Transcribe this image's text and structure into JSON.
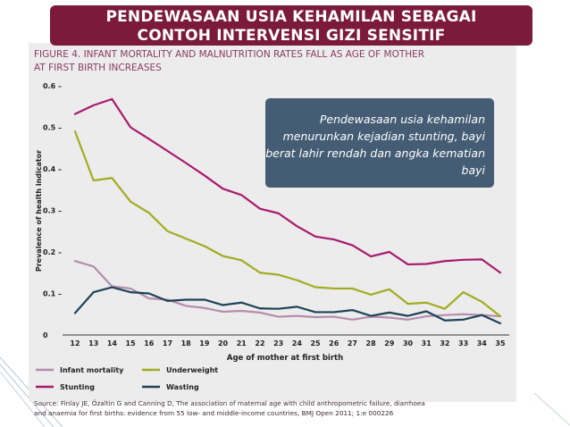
{
  "slide": {
    "title": "PENDEWASAAN USIA KEHAMILAN SEBAGAI CONTOH INTERVENSI GIZI SENSITIF",
    "callout": "Pendewasaan usia kehamilan menurunkan kejadian stunting, bayi berat lahir rendah dan angka kematian bayi"
  },
  "figure": {
    "title_line1": "FIGURE 4. INFANT MORTALITY AND MALNUTRITION RATES FALL AS AGE OF MOTHER",
    "title_line2": "AT FIRST BIRTH INCREASES",
    "source_line1": "Source:  Finlay JE, Özaltin G and Canning D, The association of maternal age with child anthropometric failure, diarrhoea",
    "source_line2": "and anaemia for first births: evidence from 55 low- and middle-income countries, BMJ Open 2011; 1:e 000226"
  },
  "colors": {
    "banner": "#7b1a3b",
    "panel": "#ececec",
    "callout": "#445c74",
    "figure_title": "#8a3b64"
  },
  "chart_data": {
    "type": "line",
    "xlabel": "Age of mother at first birth",
    "ylabel": "Prevalence of health indicator",
    "x": [
      12,
      13,
      14,
      15,
      16,
      17,
      18,
      19,
      20,
      21,
      22,
      23,
      24,
      25,
      26,
      27,
      28,
      29,
      30,
      31,
      32,
      33,
      34,
      35
    ],
    "ylim": [
      0,
      0.6
    ],
    "y_ticks": [
      0,
      0.1,
      0.2,
      0.3,
      0.4,
      0.5,
      0.6
    ],
    "y_tick_labels": [
      "0",
      "0.1 –",
      "0.2 –",
      "0.3 –",
      "0.4 –",
      "0.5 –",
      "0.6 –"
    ],
    "grid": false,
    "legend_position": "bottom",
    "series": [
      {
        "name": "Infant mortality",
        "color": "#b58cae",
        "values": [
          0.178,
          0.165,
          0.117,
          0.112,
          0.088,
          0.085,
          0.07,
          0.065,
          0.056,
          0.058,
          0.054,
          0.044,
          0.046,
          0.043,
          0.044,
          0.037,
          0.044,
          0.042,
          0.037,
          0.045,
          0.048,
          0.05,
          0.048,
          0.045
        ]
      },
      {
        "name": "Underweight",
        "color": "#a2ac1f",
        "values": [
          0.49,
          0.372,
          0.378,
          0.321,
          0.294,
          0.25,
          0.232,
          0.214,
          0.19,
          0.18,
          0.15,
          0.145,
          0.132,
          0.115,
          0.112,
          0.112,
          0.097,
          0.11,
          0.075,
          0.078,
          0.063,
          0.103,
          0.08,
          0.045
        ]
      },
      {
        "name": "Stunting",
        "color": "#a81a6e",
        "values": [
          0.532,
          0.553,
          0.568,
          0.5,
          0.472,
          0.443,
          0.414,
          0.384,
          0.352,
          0.337,
          0.304,
          0.293,
          0.262,
          0.237,
          0.23,
          0.216,
          0.189,
          0.2,
          0.17,
          0.171,
          0.178,
          0.181,
          0.182,
          0.15
        ]
      },
      {
        "name": "Wasting",
        "color": "#1e4357",
        "values": [
          0.053,
          0.103,
          0.115,
          0.103,
          0.1,
          0.082,
          0.085,
          0.085,
          0.072,
          0.078,
          0.064,
          0.063,
          0.068,
          0.055,
          0.055,
          0.06,
          0.046,
          0.054,
          0.046,
          0.057,
          0.035,
          0.037,
          0.048,
          0.028
        ]
      }
    ]
  }
}
